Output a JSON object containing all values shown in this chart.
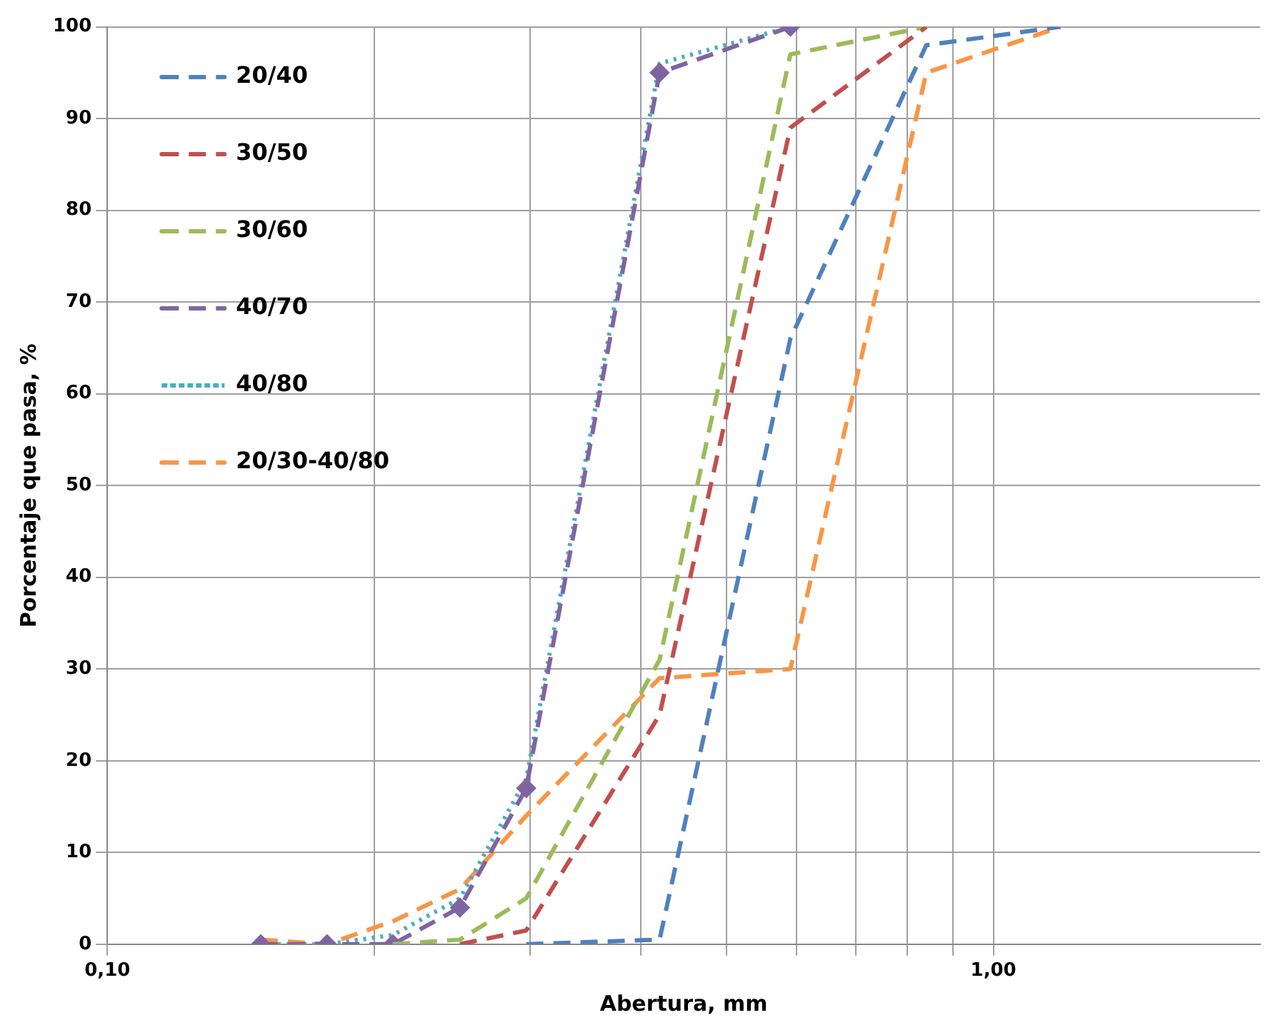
{
  "chart_data": {
    "type": "line",
    "xlabel": "Abertura, mm",
    "ylabel": "Porcentaje que pasa, %",
    "log": "x",
    "grid": true,
    "legend": "top left",
    "xlim": [
      0.1,
      2
    ],
    "xticks": [
      {
        "value": 0.1,
        "label": "0,10"
      },
      {
        "value": 0.2,
        "label": null
      },
      {
        "value": 0.3,
        "label": null
      },
      {
        "value": 0.4,
        "label": null
      },
      {
        "value": 0.5,
        "label": null
      },
      {
        "value": 0.6,
        "label": null
      },
      {
        "value": 0.7,
        "label": null
      },
      {
        "value": 0.8,
        "label": null
      },
      {
        "value": 0.9,
        "label": null
      },
      {
        "value": 1,
        "label": "1,00"
      }
    ],
    "ylim": [
      0,
      100
    ],
    "yticks": [
      0,
      10,
      20,
      30,
      40,
      50,
      60,
      70,
      80,
      90,
      100
    ],
    "series": [
      {
        "name": "20/40",
        "color": "#4f81bd",
        "line_style": "dashed",
        "marker": "none",
        "x": [
          0.297,
          0.42,
          0.59,
          0.84,
          1.19
        ],
        "values": [
          0,
          0.5,
          66,
          98,
          100
        ]
      },
      {
        "name": "30/50",
        "color": "#c0504d",
        "line_style": "dashed",
        "marker": "none",
        "x": [
          0.25,
          0.297,
          0.42,
          0.59,
          0.84
        ],
        "values": [
          0,
          1.5,
          25,
          89,
          100
        ]
      },
      {
        "name": "30/60",
        "color": "#9bbb59",
        "line_style": "dashed",
        "marker": "none",
        "x": [
          0.21,
          0.25,
          0.297,
          0.42,
          0.59,
          0.84
        ],
        "values": [
          0,
          0.5,
          5,
          31,
          97,
          100
        ]
      },
      {
        "name": "40/70",
        "color": "#8064a2",
        "line_style": "dashed",
        "marker": "diamond",
        "x": [
          0.149,
          0.177,
          0.21,
          0.25,
          0.297,
          0.42,
          0.59
        ],
        "values": [
          0,
          0,
          0,
          4,
          17,
          95,
          100
        ]
      },
      {
        "name": "40/80",
        "color": "#4bacc6",
        "line_style": "dotted",
        "marker": "none",
        "x": [
          0.149,
          0.177,
          0.21,
          0.25,
          0.297,
          0.42,
          0.59
        ],
        "values": [
          0,
          0,
          1,
          5,
          18,
          96,
          100
        ]
      },
      {
        "name": "20/30-40/80",
        "color": "#f79646",
        "line_style": "dashed",
        "marker": "none",
        "x": [
          0.149,
          0.177,
          0.21,
          0.25,
          0.297,
          0.42,
          0.59,
          0.84,
          1.19
        ],
        "values": [
          0.5,
          0,
          2.5,
          6,
          14,
          29,
          30,
          95,
          100
        ]
      }
    ]
  }
}
